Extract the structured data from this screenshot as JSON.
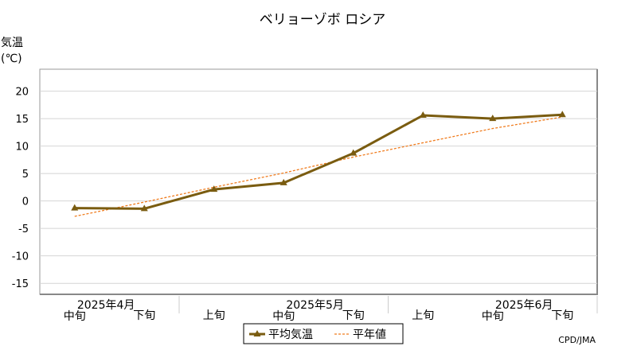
{
  "chart_data": {
    "type": "line",
    "title": "ベリョーゾボ ロシア",
    "ylabel_line1": "気温",
    "ylabel_line2": "(℃)",
    "ylim": [
      -17,
      24
    ],
    "yticks": [
      20,
      15,
      10,
      5,
      0,
      -5,
      -10,
      -15
    ],
    "categories": [
      "中旬",
      "下旬",
      "上旬",
      "中旬",
      "下旬",
      "上旬",
      "中旬",
      "下旬"
    ],
    "month_labels": [
      "2025年4月",
      "2025年5月",
      "2025年6月"
    ],
    "grid": true,
    "legend": "bottom",
    "series": [
      {
        "name": "平均気温",
        "values": [
          -1.3,
          -1.4,
          2.1,
          3.3,
          8.7,
          15.6,
          15.0,
          15.7
        ],
        "color": "#7a5c10",
        "style": "solid",
        "marker": "triangle"
      },
      {
        "name": "平年値",
        "values": [
          -2.8,
          -0.2,
          2.5,
          5.1,
          8.0,
          10.6,
          13.2,
          15.3
        ],
        "color": "#f07c1e",
        "style": "dashed"
      }
    ],
    "source": "CPD/JMA"
  }
}
